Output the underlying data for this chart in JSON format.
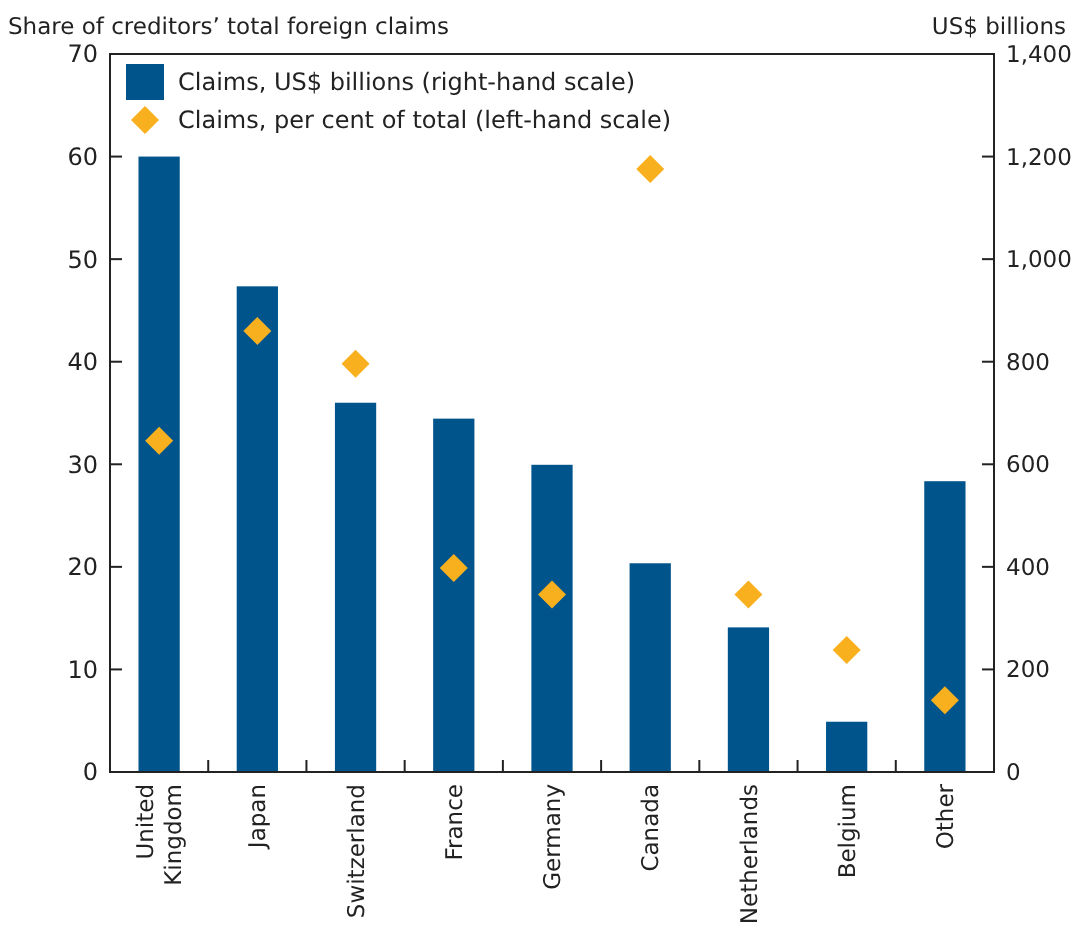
{
  "chart_data": {
    "type": "bar",
    "ylabel": "Share of creditors’ total foreign claims",
    "y2label": "US$ billions",
    "categories": [
      "United Kingdom",
      "Japan",
      "Switzerland",
      "France",
      "Germany",
      "Canada",
      "Netherlands",
      "Belgium",
      "Other"
    ],
    "series": [
      {
        "name": "Claims, US$ billions (right-hand scale)",
        "axis": "y2",
        "color": "#00548c",
        "values": [
          1200,
          947,
          720,
          689,
          599,
          407,
          282,
          98,
          567
        ]
      },
      {
        "name": "Claims, per cent of total (left-hand scale)",
        "type": "scatter",
        "marker": "diamond",
        "color": "#f9b01e",
        "values": [
          32.3,
          43.0,
          39.8,
          19.9,
          17.3,
          58.8,
          17.3,
          11.9,
          7.0
        ]
      }
    ],
    "ylim": [
      0,
      70
    ],
    "yticks": [
      0,
      10,
      20,
      30,
      40,
      50,
      60,
      70
    ],
    "y2lim": [
      0,
      1400
    ],
    "y2ticks": [
      {
        "value": 0,
        "label": "0"
      },
      {
        "value": 200,
        "label": "200"
      },
      {
        "value": 400,
        "label": "400"
      },
      {
        "value": 600,
        "label": "600"
      },
      {
        "value": 800,
        "label": "800"
      },
      {
        "value": 1000,
        "label": "1,000"
      },
      {
        "value": 1200,
        "label": "1,200"
      },
      {
        "value": 1400,
        "label": "1,400"
      }
    ],
    "grid": false,
    "legend": "top left"
  }
}
